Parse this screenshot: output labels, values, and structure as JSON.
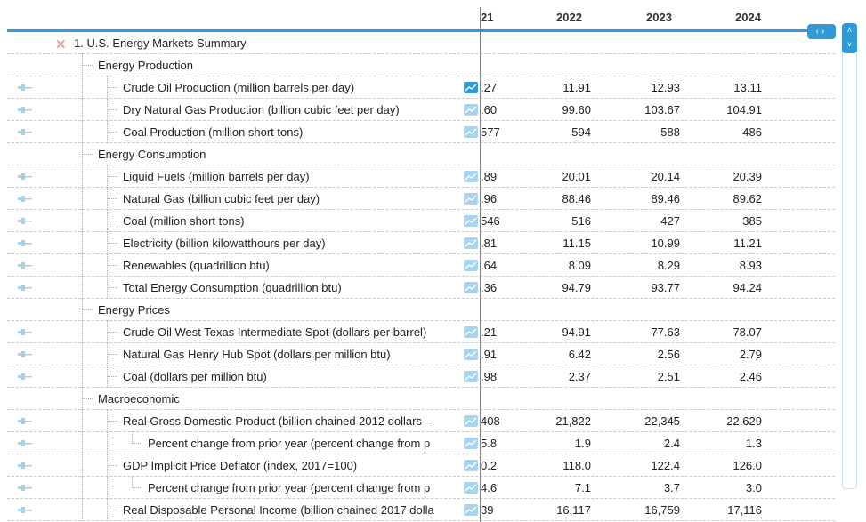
{
  "columns": [
    "21",
    "2022",
    "2023",
    "2024"
  ],
  "nav": {
    "prev": "‹",
    "next": "›",
    "up": "˄",
    "down": "˅"
  },
  "root": {
    "label": "1. U.S. Energy Markets Summary"
  },
  "rows": [
    {
      "type": "group",
      "label": "Energy Production"
    },
    {
      "type": "item",
      "label": "Crude Oil Production (million barrels per day)",
      "v21": ".27",
      "v2022": "11.91",
      "v2023": "12.93",
      "v2024": "13.11",
      "active": true
    },
    {
      "type": "item",
      "label": "Dry Natural Gas Production (billion cubic feet per day)",
      "v21": ".60",
      "v2022": "99.60",
      "v2023": "103.67",
      "v2024": "104.91"
    },
    {
      "type": "item",
      "label": "Coal Production (million short tons)",
      "v21": "577",
      "v2022": "594",
      "v2023": "588",
      "v2024": "486"
    },
    {
      "type": "group",
      "label": "Energy Consumption"
    },
    {
      "type": "item",
      "label": "Liquid Fuels (million barrels per day)",
      "v21": ".89",
      "v2022": "20.01",
      "v2023": "20.14",
      "v2024": "20.39"
    },
    {
      "type": "item",
      "label": "Natural Gas (billion cubic feet per day)",
      "v21": ".96",
      "v2022": "88.46",
      "v2023": "89.46",
      "v2024": "89.62"
    },
    {
      "type": "item",
      "label": "Coal (million short tons)",
      "v21": "546",
      "v2022": "516",
      "v2023": "427",
      "v2024": "385"
    },
    {
      "type": "item",
      "label": "Electricity (billion kilowatthours per day)",
      "v21": ".81",
      "v2022": "11.15",
      "v2023": "10.99",
      "v2024": "11.21"
    },
    {
      "type": "item",
      "label": "Renewables (quadrillion btu)",
      "v21": ".64",
      "v2022": "8.09",
      "v2023": "8.29",
      "v2024": "8.93"
    },
    {
      "type": "item",
      "label": "Total Energy Consumption (quadrillion btu)",
      "v21": ".36",
      "v2022": "94.79",
      "v2023": "93.77",
      "v2024": "94.24"
    },
    {
      "type": "group",
      "label": "Energy Prices"
    },
    {
      "type": "item",
      "label": "Crude Oil West Texas Intermediate Spot (dollars per barrel)",
      "v21": ".21",
      "v2022": "94.91",
      "v2023": "77.63",
      "v2024": "78.07"
    },
    {
      "type": "item",
      "label": "Natural Gas Henry Hub Spot (dollars per million btu)",
      "v21": ".91",
      "v2022": "6.42",
      "v2023": "2.56",
      "v2024": "2.79"
    },
    {
      "type": "item",
      "label": "Coal (dollars per million btu)",
      "v21": ".98",
      "v2022": "2.37",
      "v2023": "2.51",
      "v2024": "2.46"
    },
    {
      "type": "group",
      "label": "Macroeconomic"
    },
    {
      "type": "item",
      "label": "Real Gross Domestic Product (billion chained 2012 dollars -",
      "v21": "408",
      "v2022": "21,822",
      "v2023": "22,345",
      "v2024": "22,629"
    },
    {
      "type": "sub",
      "label": "Percent change from prior year (percent change from p",
      "v21": "5.8",
      "v2022": "1.9",
      "v2023": "2.4",
      "v2024": "1.3"
    },
    {
      "type": "item",
      "label": "GDP Implicit Price Deflator (index, 2017=100)",
      "v21": "0.2",
      "v2022": "118.0",
      "v2023": "122.4",
      "v2024": "126.0"
    },
    {
      "type": "sub",
      "label": "Percent change from prior year (percent change from p",
      "v21": "4.6",
      "v2022": "7.1",
      "v2023": "3.7",
      "v2024": "3.0"
    },
    {
      "type": "item",
      "label": "Real Disposable Personal Income (billion chained 2017 dolla",
      "v21": "39",
      "v2022": "16,117",
      "v2023": "16,759",
      "v2024": "17,116"
    }
  ]
}
